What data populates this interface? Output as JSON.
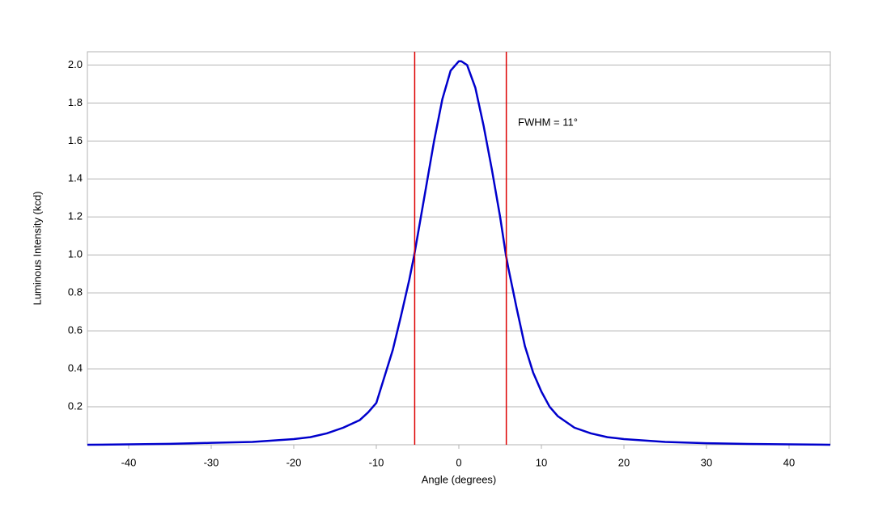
{
  "chart_data": {
    "type": "line",
    "x_label": "Angle (degrees)",
    "y_label": "Luminous Intensity (kcd)",
    "annotation": "FWHM = 11°",
    "xlim": [
      -45,
      45
    ],
    "ylim": [
      0,
      2.07
    ],
    "xticks": [
      -40,
      -30,
      -20,
      -10,
      0,
      10,
      20,
      30,
      40
    ],
    "yticks": [
      0.2,
      0.4,
      0.6,
      0.8,
      {
        "value": 1,
        "label": "1.0"
      },
      1.2,
      1.4,
      1.6,
      1.8,
      {
        "value": 2,
        "label": "2.0"
      }
    ],
    "grid": true,
    "x": [
      -45,
      -40,
      -35,
      -30,
      -25,
      -20,
      -18,
      -16,
      -14,
      -12,
      -11,
      -10,
      -9,
      -8,
      -7,
      -6,
      -5.4,
      -5,
      -4,
      -3,
      -2,
      -1,
      0,
      0.3,
      1,
      2,
      3,
      4,
      5,
      5.7,
      6,
      7,
      8,
      9,
      10,
      11,
      12,
      14,
      16,
      18,
      20,
      25,
      30,
      35,
      40,
      45
    ],
    "series": [
      {
        "color": "#0000cc",
        "values": [
          0,
          0.002,
          0.005,
          0.01,
          0.015,
          0.03,
          0.04,
          0.06,
          0.09,
          0.13,
          0.17,
          0.22,
          0.36,
          0.5,
          0.68,
          0.87,
          1.0,
          1.1,
          1.35,
          1.6,
          1.82,
          1.97,
          2.02,
          2.02,
          2.0,
          1.88,
          1.68,
          1.45,
          1.2,
          1.0,
          0.93,
          0.72,
          0.52,
          0.38,
          0.28,
          0.2,
          0.15,
          0.09,
          0.06,
          0.04,
          0.03,
          0.015,
          0.008,
          0.004,
          0.002,
          0
        ]
      }
    ],
    "vlines": [
      -5.35,
      5.75
    ],
    "vline_color": "#dd0000"
  }
}
